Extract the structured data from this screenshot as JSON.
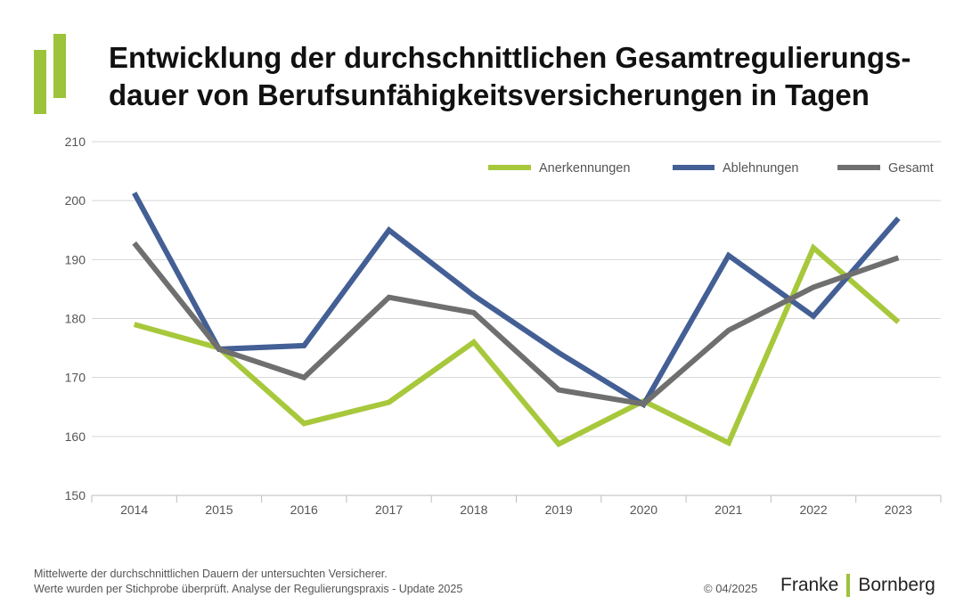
{
  "title_line1": "Entwicklung der durchschnittlichen Gesamtregulierungs-",
  "title_line2": "dauer von Berufsunfähigkeitsversicherungen in Tagen",
  "footnote_line1": "Mittelwerte der durchschnittlichen Dauern der untersuchten Versicherer.",
  "footnote_line2": "Werte wurden per Stichprobe überprüft. Analyse der Regulierungspraxis - Update 2025",
  "copyright": "© 04/2025",
  "brand_left": "Franke",
  "brand_right": "Bornberg",
  "brand_color": "#9cc33a",
  "chart_data": {
    "type": "line",
    "categories": [
      "2014",
      "2015",
      "2016",
      "2017",
      "2018",
      "2019",
      "2020",
      "2021",
      "2022",
      "2023"
    ],
    "series": [
      {
        "name": "Anerkennungen",
        "color": "#a8c83c",
        "values": [
          179,
          175,
          162.2,
          165.8,
          176,
          158.7,
          166,
          158.9,
          192,
          179.4
        ]
      },
      {
        "name": "Ablehnungen",
        "color": "#435f95",
        "values": [
          201.3,
          174.8,
          175.4,
          195,
          183.9,
          174.2,
          165.4,
          190.7,
          180.4,
          197
        ]
      },
      {
        "name": "Gesamt",
        "color": "#6f6f6f",
        "values": [
          192.8,
          174.8,
          170,
          183.6,
          181,
          167.9,
          165.5,
          178,
          185.3,
          190.3
        ]
      }
    ],
    "ylim": [
      150,
      210
    ],
    "yticks": [
      150,
      160,
      170,
      180,
      190,
      200,
      210
    ],
    "grid": true,
    "legend": "top-right"
  }
}
